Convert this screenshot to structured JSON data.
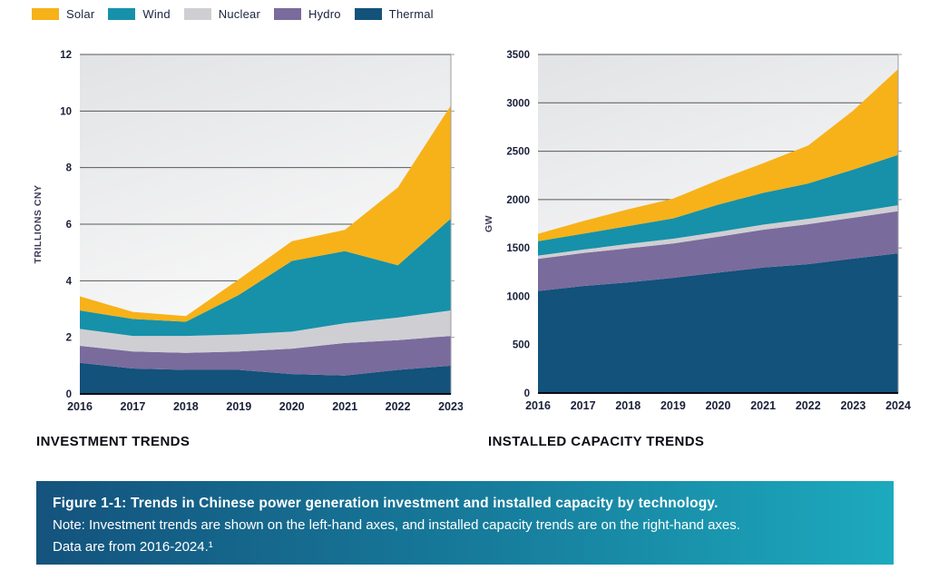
{
  "legend": {
    "items": [
      {
        "label": "Solar",
        "color": "#f7b219"
      },
      {
        "label": "Wind",
        "color": "#1691a9"
      },
      {
        "label": "Nuclear",
        "color": "#cfcfd3"
      },
      {
        "label": "Hydro",
        "color": "#7a6b9d"
      },
      {
        "label": "Thermal",
        "color": "#12527b"
      }
    ]
  },
  "chart_data": [
    {
      "type": "area",
      "title": "INVESTMENT TRENDS",
      "ylabel": "TRILLIONS CNY",
      "x": [
        2016,
        2017,
        2018,
        2019,
        2020,
        2021,
        2022,
        2023
      ],
      "ylim": [
        0,
        12
      ],
      "yticks": [
        0,
        2,
        4,
        6,
        8,
        10,
        12
      ],
      "stack_order": [
        "Thermal",
        "Hydro",
        "Nuclear",
        "Wind",
        "Solar"
      ],
      "legend_position": "top-left",
      "grid": true,
      "series": [
        {
          "name": "Thermal",
          "values": [
            1.1,
            0.9,
            0.85,
            0.85,
            0.7,
            0.65,
            0.85,
            1.0
          ]
        },
        {
          "name": "Hydro",
          "values": [
            0.6,
            0.6,
            0.6,
            0.65,
            0.9,
            1.15,
            1.05,
            1.05
          ]
        },
        {
          "name": "Nuclear",
          "values": [
            0.6,
            0.55,
            0.6,
            0.6,
            0.6,
            0.7,
            0.8,
            0.9
          ]
        },
        {
          "name": "Wind",
          "values": [
            0.65,
            0.6,
            0.5,
            1.4,
            2.5,
            2.55,
            1.85,
            3.25
          ]
        },
        {
          "name": "Solar",
          "values": [
            0.5,
            0.25,
            0.2,
            0.55,
            0.7,
            0.75,
            2.75,
            4.0
          ]
        }
      ]
    },
    {
      "type": "area",
      "title": "INSTALLED CAPACITY TRENDS",
      "ylabel": "GW",
      "x": [
        2016,
        2017,
        2018,
        2019,
        2020,
        2021,
        2022,
        2023,
        2024
      ],
      "ylim": [
        0,
        3500
      ],
      "yticks": [
        0,
        500,
        1000,
        1500,
        2000,
        2500,
        3000,
        3500
      ],
      "stack_order": [
        "Thermal",
        "Hydro",
        "Nuclear",
        "Wind",
        "Solar"
      ],
      "legend_position": "top-left",
      "grid": true,
      "series": [
        {
          "name": "Thermal",
          "values": [
            1054,
            1106,
            1144,
            1190,
            1245,
            1297,
            1332,
            1390,
            1444
          ]
        },
        {
          "name": "Hydro",
          "values": [
            332,
            341,
            352,
            356,
            370,
            391,
            413,
            422,
            436
          ]
        },
        {
          "name": "Nuclear",
          "values": [
            34,
            36,
            45,
            49,
            50,
            53,
            56,
            57,
            61
          ]
        },
        {
          "name": "Wind",
          "values": [
            149,
            164,
            184,
            210,
            282,
            328,
            365,
            441,
            521
          ]
        },
        {
          "name": "Solar",
          "values": [
            77,
            130,
            174,
            204,
            253,
            306,
            392,
            609,
            887
          ]
        }
      ]
    }
  ],
  "caption": {
    "title": "Figure 1-1: Trends in Chinese power generation investment and installed capacity by technology.",
    "note": "Note: Investment trends are shown on the left-hand axes, and installed capacity trends are on the right-hand axes.",
    "data_range": "Data are from 2016-2024.¹"
  },
  "style_colors": {
    "gridline": "#58595b",
    "axis_line": "#0d0d14",
    "plot_border": "#9c9ea1",
    "tick_label": "#1a2038",
    "y_axis_label": "#3c3c58",
    "plot_bg_top": "#e2e3e5",
    "plot_bg_bottom": "#fcfcfc",
    "caption_gradient_left": "#14537d",
    "caption_gradient_right": "#1caabe"
  }
}
